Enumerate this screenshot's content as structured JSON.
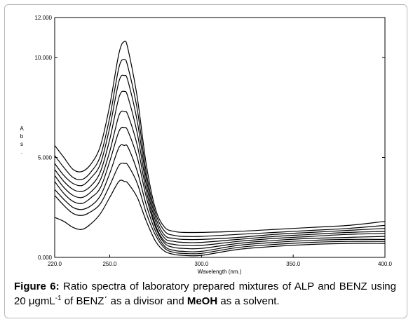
{
  "chart_data": {
    "type": "line",
    "xlabel": "Wavelength (nm.)",
    "ylabel": "Abs.",
    "xlim": [
      220,
      400
    ],
    "ylim": [
      0,
      12
    ],
    "x_ticks": [
      "220.0",
      "250.0",
      "300.0",
      "350.0",
      "400.0"
    ],
    "x_tick_values": [
      220,
      250,
      300,
      350,
      400
    ],
    "y_ticks": [
      "0.000",
      "5.000",
      "10.000",
      "12.000"
    ],
    "y_tick_values": [
      0,
      5,
      10,
      12
    ],
    "grid": false,
    "legend": "none",
    "x": [
      220,
      225,
      230,
      235,
      240,
      245,
      250,
      255,
      258,
      260,
      265,
      270,
      275,
      280,
      285,
      290,
      300,
      320,
      340,
      360,
      380,
      400
    ],
    "series": [
      {
        "values": [
          5.6,
          5.0,
          4.4,
          4.3,
          4.7,
          5.6,
          7.6,
          10.2,
          10.8,
          10.4,
          8.0,
          4.6,
          2.4,
          1.5,
          1.3,
          1.25,
          1.25,
          1.3,
          1.4,
          1.5,
          1.6,
          1.8
        ]
      },
      {
        "values": [
          5.1,
          4.5,
          4.0,
          3.9,
          4.3,
          5.1,
          7.0,
          9.5,
          9.9,
          9.5,
          7.4,
          4.2,
          2.2,
          1.3,
          1.1,
          1.05,
          1.05,
          1.15,
          1.25,
          1.35,
          1.45,
          1.6
        ]
      },
      {
        "values": [
          4.7,
          4.1,
          3.7,
          3.6,
          4.0,
          4.7,
          6.5,
          8.8,
          9.1,
          8.8,
          6.8,
          3.9,
          2.0,
          1.1,
          0.95,
          0.9,
          0.9,
          1.0,
          1.15,
          1.25,
          1.35,
          1.45
        ]
      },
      {
        "values": [
          4.4,
          3.8,
          3.4,
          3.3,
          3.6,
          4.3,
          5.9,
          8.0,
          8.3,
          8.0,
          6.2,
          3.6,
          1.8,
          0.95,
          0.8,
          0.75,
          0.75,
          0.9,
          1.05,
          1.15,
          1.25,
          1.3
        ]
      },
      {
        "values": [
          4.1,
          3.5,
          3.1,
          3.0,
          3.3,
          3.9,
          5.3,
          7.1,
          7.3,
          7.1,
          5.6,
          3.3,
          1.6,
          0.8,
          0.65,
          0.6,
          0.6,
          0.8,
          0.95,
          1.05,
          1.15,
          1.2
        ]
      },
      {
        "values": [
          3.8,
          3.2,
          2.8,
          2.7,
          3.0,
          3.5,
          4.8,
          6.3,
          6.5,
          6.3,
          5.0,
          3.0,
          1.5,
          0.7,
          0.5,
          0.45,
          0.45,
          0.7,
          0.85,
          0.95,
          1.0,
          1.05
        ]
      },
      {
        "values": [
          3.4,
          2.9,
          2.5,
          2.4,
          2.6,
          3.1,
          4.2,
          5.5,
          5.6,
          5.5,
          4.3,
          2.6,
          1.3,
          0.55,
          0.35,
          0.3,
          0.3,
          0.6,
          0.75,
          0.85,
          0.9,
          0.9
        ]
      },
      {
        "values": [
          3.1,
          2.6,
          2.2,
          2.1,
          2.3,
          2.7,
          3.6,
          4.6,
          4.7,
          4.6,
          3.7,
          2.2,
          1.1,
          0.45,
          0.25,
          0.2,
          0.2,
          0.5,
          0.65,
          0.75,
          0.8,
          0.8
        ]
      },
      {
        "values": [
          2.0,
          1.8,
          1.5,
          1.4,
          1.7,
          2.2,
          3.0,
          3.8,
          3.8,
          3.7,
          3.0,
          1.8,
          0.8,
          0.3,
          0.15,
          0.1,
          0.1,
          0.4,
          0.55,
          0.65,
          0.7,
          0.7
        ]
      }
    ]
  },
  "caption": {
    "label": "Figure 6:",
    "text_1": " Ratio spectra of laboratory prepared mixtures of ALP and BENZ using 20 μgmL",
    "superscript": "-1",
    "text_2": " of BENZ΄ as a divisor and ",
    "solvent": "MeOH",
    "text_3": " as a solvent."
  }
}
